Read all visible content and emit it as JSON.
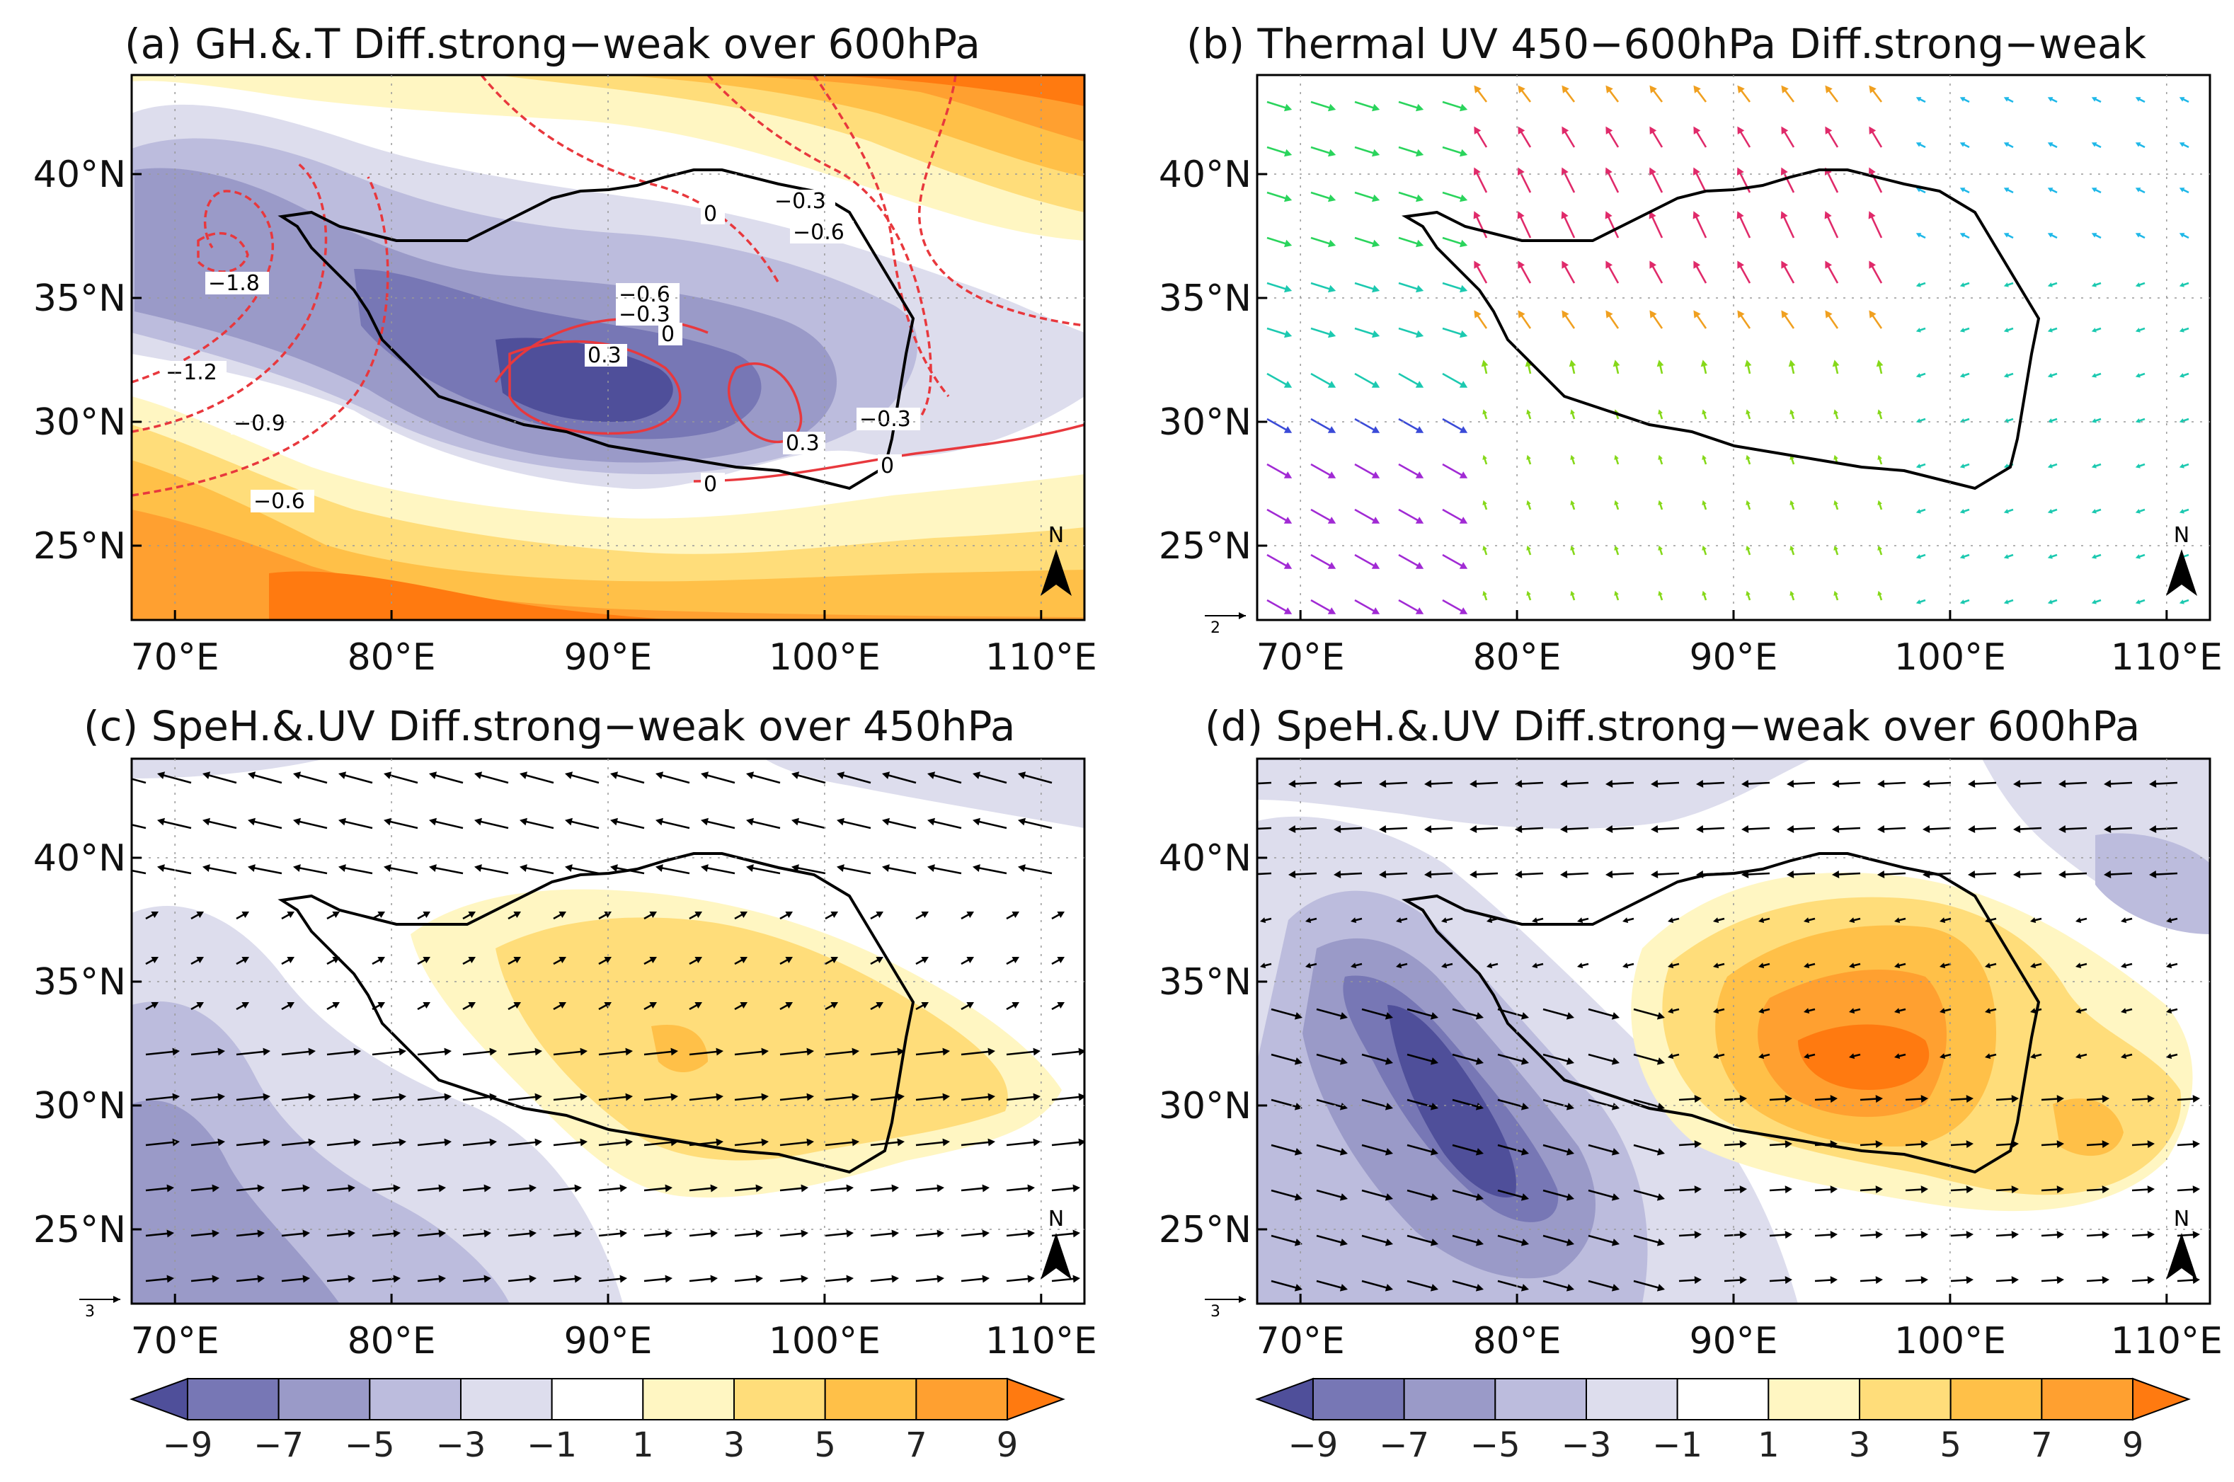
{
  "figure": {
    "colorbar_levels": [
      "−9",
      "−7",
      "−5",
      "−3",
      "−1",
      "1",
      "3",
      "5",
      "7",
      "9"
    ],
    "colorbar_colors": [
      "#4f4f9a",
      "#7777b5",
      "#9a9ac8",
      "#bcbcdd",
      "#dddded",
      "#ffffff",
      "#fff6c2",
      "#ffdd7a",
      "#ffc048",
      "#ffa030",
      "#ff7a10"
    ],
    "north_label": "N",
    "x_ticks": [
      "70°E",
      "80°E",
      "90°E",
      "100°E",
      "110°E"
    ],
    "y_ticks": [
      "25°N",
      "30°N",
      "35°N",
      "40°N"
    ]
  },
  "panels": [
    {
      "id": "a",
      "title": "(a) GH.&.T Diff.strong−weak over 600hPa",
      "contour_labels": [
        "0",
        "−0.3",
        "−0.6",
        "−1.8",
        "−0.6",
        "−0.3",
        "0",
        "0.3",
        "−1.2",
        "−0.9",
        "−0.3",
        "0.3",
        "0",
        "0",
        "−0.6"
      ]
    },
    {
      "id": "b",
      "title": "(b) Thermal UV 450−600hPa Diff.strong−weak",
      "ref_vector": "2"
    },
    {
      "id": "c",
      "title": "(c) SpeH.&.UV Diff.strong−weak over 450hPa",
      "ref_vector": "3"
    },
    {
      "id": "d",
      "title": "(d) SpeH.&.UV Diff.strong−weak over 600hPa",
      "ref_vector": "3"
    }
  ],
  "chart_data": [
    {
      "type": "contour map",
      "panel": "a",
      "title": "(a) GH.&.T Diff.strong−weak over 600hPa",
      "x_range": [
        68,
        112
      ],
      "y_range": [
        22,
        44
      ],
      "x_units": "°E",
      "y_units": "°N",
      "fill": "geopotential height difference, levels −9..9 by 2",
      "contours": "temperature difference, interval 0.3",
      "contour_values": [
        "0",
        "−0.3",
        "−0.6",
        "−1.8",
        "−0.6",
        "−0.3",
        "0",
        "0.3",
        "−1.2",
        "−0.9",
        "−0.3",
        "0.3",
        "0",
        "0",
        "−0.6"
      ]
    },
    {
      "type": "vector map",
      "panel": "b",
      "title": "(b) Thermal UV 450−600hPa Diff.strong−weak",
      "x_range": [
        68,
        112
      ],
      "y_range": [
        22,
        44
      ],
      "reference_vector": "2"
    },
    {
      "type": "shaded vector map",
      "panel": "c",
      "title": "(c) SpeH.&.UV Diff.strong−weak over 450hPa",
      "x_range": [
        68,
        112
      ],
      "y_range": [
        22,
        44
      ],
      "reference_vector": "3",
      "shading_levels": [
        -9,
        -7,
        -5,
        -3,
        -1,
        1,
        3,
        5,
        7,
        9
      ]
    },
    {
      "type": "shaded vector map",
      "panel": "d",
      "title": "(d) SpeH.&.UV Diff.strong−weak over 600hPa",
      "x_range": [
        68,
        112
      ],
      "y_range": [
        22,
        44
      ],
      "reference_vector": "3",
      "shading_levels": [
        -9,
        -7,
        -5,
        -3,
        -1,
        1,
        3,
        5,
        7,
        9
      ]
    }
  ]
}
